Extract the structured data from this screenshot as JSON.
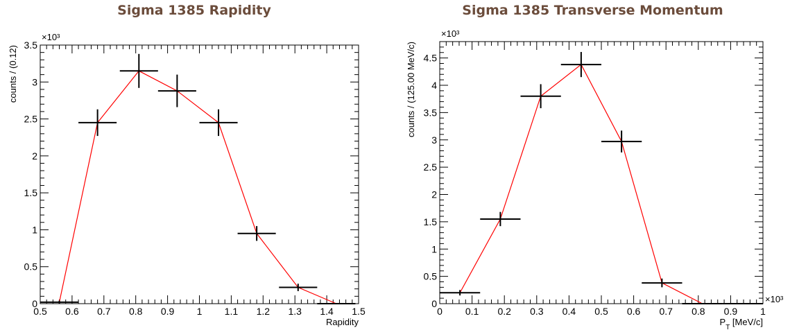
{
  "chart_data": [
    {
      "type": "line",
      "title": "Sigma 1385 Rapidity",
      "xlabel": "Rapidity",
      "ylabel": "counts / (0.12)",
      "y_multiplier": "×10³",
      "x_multiplier": "",
      "xlim": [
        0.5,
        1.5
      ],
      "ylim": [
        0,
        3.5
      ],
      "x_ticks": [
        "0.5",
        "0.6",
        "0.7",
        "0.8",
        "0.9",
        "1",
        "1.1",
        "1.2",
        "1.3",
        "1.4",
        "1.5"
      ],
      "y_ticks": [
        "0",
        "0.5",
        "1",
        "1.5",
        "2",
        "2.5",
        "3",
        "3.5"
      ],
      "x_tick_values": [
        0.5,
        0.6,
        0.7,
        0.8,
        0.9,
        1.0,
        1.1,
        1.2,
        1.3,
        1.4,
        1.5
      ],
      "y_tick_values": [
        0,
        0.5,
        1,
        1.5,
        2,
        2.5,
        3,
        3.5
      ],
      "bin_half_width": 0.06,
      "x": [
        0.56,
        0.68,
        0.81,
        0.93,
        1.06,
        1.18,
        1.31,
        1.43
      ],
      "y": [
        0.02,
        2.45,
        3.15,
        2.88,
        2.45,
        0.95,
        0.22,
        0.0
      ],
      "y_err": [
        0.02,
        0.18,
        0.23,
        0.22,
        0.18,
        0.1,
        0.05,
        0.0
      ],
      "grid": false,
      "line_color": "#ff0000",
      "marker_color": "#000000"
    },
    {
      "type": "line",
      "title": "Sigma 1385 Transverse Momentum",
      "xlabel": "P_T [MeV/c]",
      "ylabel": "counts / (125.00 MeV/c)",
      "y_multiplier": "×10³",
      "x_multiplier": "×10³",
      "xlim": [
        0,
        1
      ],
      "ylim": [
        0,
        4.8
      ],
      "x_ticks": [
        "0",
        "0.1",
        "0.2",
        "0.3",
        "0.4",
        "0.5",
        "0.6",
        "0.7",
        "0.8",
        "0.9",
        "1"
      ],
      "y_ticks": [
        "0",
        "0.5",
        "1",
        "1.5",
        "2",
        "2.5",
        "3",
        "3.5",
        "4",
        "4.5"
      ],
      "x_tick_values": [
        0,
        0.1,
        0.2,
        0.3,
        0.4,
        0.5,
        0.6,
        0.7,
        0.8,
        0.9,
        1.0
      ],
      "y_tick_values": [
        0,
        0.5,
        1,
        1.5,
        2,
        2.5,
        3,
        3.5,
        4,
        4.5
      ],
      "bin_half_width": 0.0625,
      "x": [
        0.0625,
        0.1875,
        0.3125,
        0.4375,
        0.5625,
        0.6875,
        0.8125,
        0.9375
      ],
      "y": [
        0.2,
        1.55,
        3.8,
        4.38,
        2.97,
        0.38,
        0.0,
        0.0
      ],
      "y_err": [
        0.05,
        0.13,
        0.22,
        0.23,
        0.2,
        0.08,
        0.0,
        0.0
      ],
      "grid": false,
      "line_color": "#ff0000",
      "marker_color": "#000000"
    }
  ]
}
